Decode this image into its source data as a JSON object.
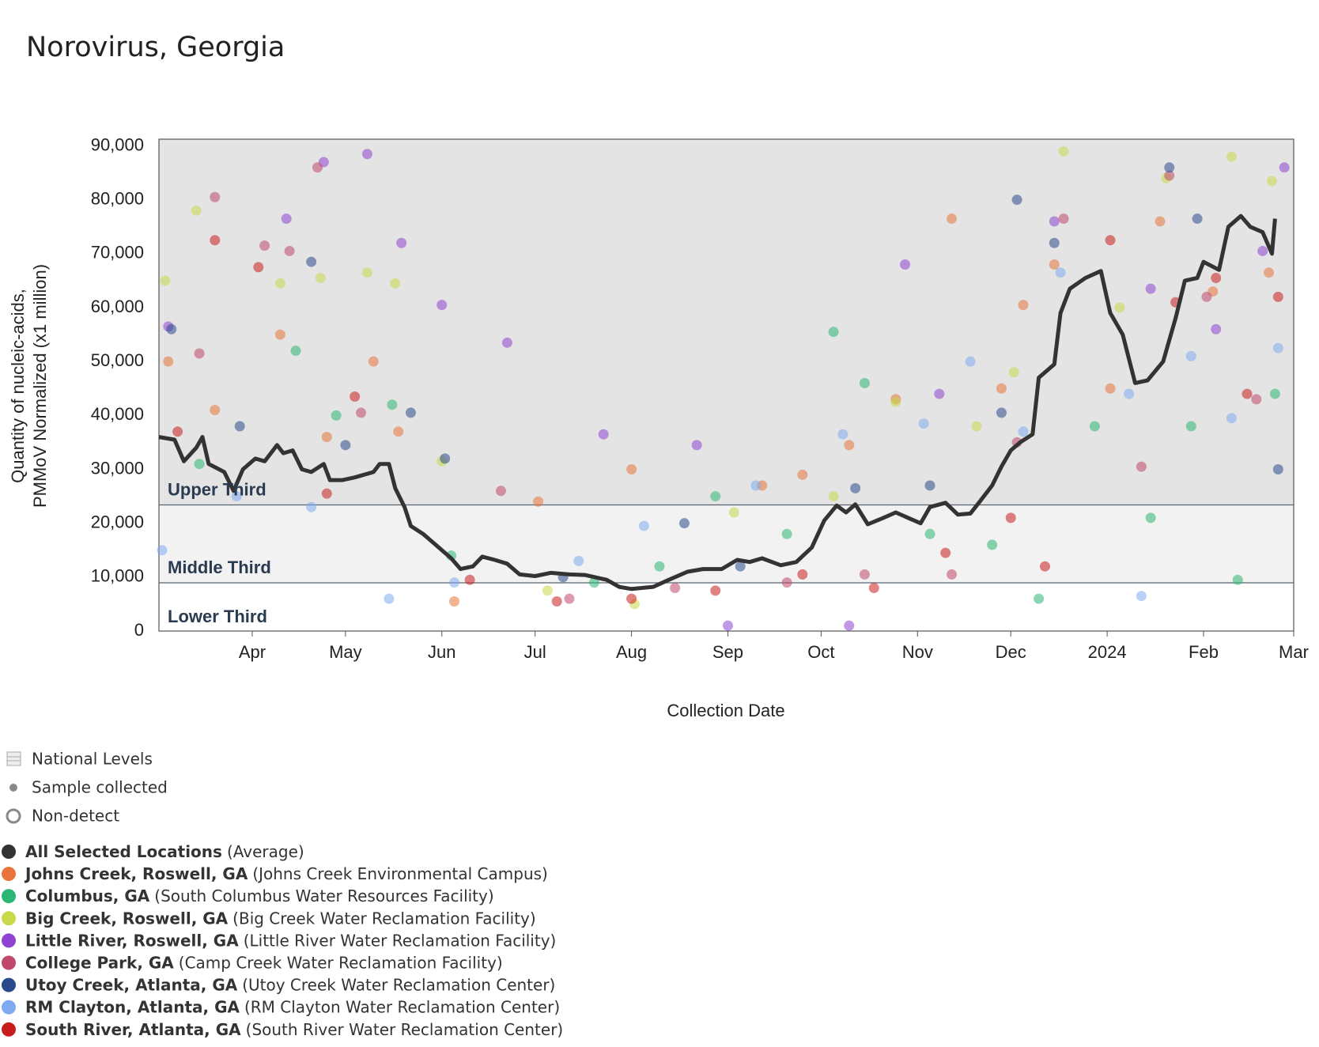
{
  "chart_data": {
    "type": "scatter",
    "title": "Norovirus, Georgia",
    "y_label": [
      "Quantity of nucleic-acids,",
      "PMMoV Normalized (x1 million)"
    ],
    "x_label": "Collection Date",
    "xlim": [
      "2023-03-02",
      "2024-03-01"
    ],
    "xticks": [
      {
        "value": "2023-04-01",
        "label": "Apr"
      },
      {
        "value": "2023-05-01",
        "label": "May"
      },
      {
        "value": "2023-06-01",
        "label": "Jun"
      },
      {
        "value": "2023-07-01",
        "label": "Jul"
      },
      {
        "value": "2023-08-01",
        "label": "Aug"
      },
      {
        "value": "2023-09-01",
        "label": "Sep"
      },
      {
        "value": "2023-10-01",
        "label": "Oct"
      },
      {
        "value": "2023-11-01",
        "label": "Nov"
      },
      {
        "value": "2023-12-01",
        "label": "Dec"
      },
      {
        "value": "2024-01-01",
        "label": "2024"
      },
      {
        "value": "2024-02-01",
        "label": "Feb"
      },
      {
        "value": "2024-03-01",
        "label": "Mar"
      }
    ],
    "ylim": [
      0,
      91250
    ],
    "yticks": [
      0,
      {
        "value": 10000,
        "label": "10,000"
      },
      {
        "value": 20000,
        "label": "20,000"
      },
      {
        "value": 30000,
        "label": "30,000"
      },
      {
        "value": 40000,
        "label": "40,000"
      },
      {
        "value": 50000,
        "label": "50,000"
      },
      {
        "value": 60000,
        "label": "60,000"
      },
      {
        "value": 70000,
        "label": "70,000"
      },
      {
        "value": 80000,
        "label": "80,000"
      },
      {
        "value": 90000,
        "label": "90,000"
      }
    ],
    "bands": [
      {
        "label": "Lower Third",
        "from": 0,
        "to": 8950,
        "color": "#ffffff"
      },
      {
        "label": "Middle Third",
        "from": 8950,
        "to": 23400,
        "color": "#f2f2f2"
      },
      {
        "label": "Upper Third",
        "from": 23400,
        "to": 91250,
        "color": "#e4e4e4"
      }
    ],
    "legend_items": [
      "National Levels",
      "Sample collected",
      "Non-detect"
    ],
    "series": [
      {
        "name": "All Selected Locations",
        "facility": "(Average)",
        "color": "#333333",
        "x": [
          "2023-03-02",
          "2023-03-07",
          "2023-03-10",
          "2023-03-14",
          "2023-03-16",
          "2023-03-18",
          "2023-03-23",
          "2023-03-26",
          "2023-03-29",
          "2023-04-02",
          "2023-04-05",
          "2023-04-07",
          "2023-04-09",
          "2023-04-11",
          "2023-04-14",
          "2023-04-17",
          "2023-04-20",
          "2023-04-24",
          "2023-04-26",
          "2023-04-30",
          "2023-05-04",
          "2023-05-10",
          "2023-05-12",
          "2023-05-15",
          "2023-05-17",
          "2023-05-20",
          "2023-05-22",
          "2023-05-26",
          "2023-05-30",
          "2023-06-04",
          "2023-06-07",
          "2023-06-11",
          "2023-06-14",
          "2023-06-18",
          "2023-06-22",
          "2023-06-26",
          "2023-07-01",
          "2023-07-06",
          "2023-07-12",
          "2023-07-17",
          "2023-07-24",
          "2023-07-28",
          "2023-08-01",
          "2023-08-08",
          "2023-08-13",
          "2023-08-19",
          "2023-08-24",
          "2023-08-30",
          "2023-09-04",
          "2023-09-08",
          "2023-09-12",
          "2023-09-18",
          "2023-09-23",
          "2023-09-28",
          "2023-10-02",
          "2023-10-06",
          "2023-10-09",
          "2023-10-12",
          "2023-10-16",
          "2023-10-21",
          "2023-10-25",
          "2023-10-29",
          "2023-11-02",
          "2023-11-05",
          "2023-11-10",
          "2023-11-14",
          "2023-11-18",
          "2023-11-21",
          "2023-11-25",
          "2023-11-28",
          "2023-12-01",
          "2023-12-04",
          "2023-12-08",
          "2023-12-10",
          "2023-12-15",
          "2023-12-17",
          "2023-12-20",
          "2023-12-25",
          "2023-12-30",
          "2024-01-02",
          "2024-01-06",
          "2024-01-10",
          "2024-01-14",
          "2024-01-19",
          "2024-01-23",
          "2024-01-26",
          "2024-01-30",
          "2024-02-01",
          "2024-02-06",
          "2024-02-09",
          "2024-02-13",
          "2024-02-16",
          "2024-02-20",
          "2024-02-23",
          "2024-02-24"
        ],
        "values": [
          36000,
          35500,
          31500,
          34000,
          36000,
          31000,
          29500,
          26000,
          30000,
          32000,
          31500,
          33000,
          34500,
          33000,
          33500,
          30000,
          29500,
          31000,
          28000,
          28000,
          28500,
          29500,
          31000,
          31000,
          26500,
          23000,
          19500,
          18000,
          16000,
          13500,
          11500,
          12000,
          13800,
          13200,
          12500,
          10500,
          10200,
          10800,
          10500,
          10400,
          9500,
          8200,
          7800,
          8200,
          9500,
          11000,
          11500,
          11500,
          13200,
          12800,
          13500,
          12200,
          12800,
          15500,
          20500,
          23300,
          22000,
          23500,
          19800,
          21000,
          22000,
          21000,
          20000,
          23000,
          23800,
          21600,
          21800,
          24000,
          27000,
          30500,
          33500,
          35000,
          36500,
          47000,
          49500,
          59000,
          63500,
          65500,
          66800,
          59000,
          55000,
          46000,
          46500,
          50000,
          58000,
          65000,
          65500,
          68500,
          67000,
          75000,
          77000,
          75000,
          74000,
          70000,
          76500
        ]
      },
      {
        "name": "Johns Creek, Roswell, GA",
        "facility": "(Johns Creek Environmental Campus)",
        "color": "#e8743b",
        "x": [
          "2023-03-05",
          "2023-03-20",
          "2023-04-10",
          "2023-04-25",
          "2023-05-10",
          "2023-05-18",
          "2023-06-05",
          "2023-07-02",
          "2023-08-01",
          "2023-09-12",
          "2023-09-25",
          "2023-10-10",
          "2023-10-25",
          "2023-11-12",
          "2023-11-28",
          "2023-12-05",
          "2023-12-15",
          "2024-01-02",
          "2024-01-18",
          "2024-02-04",
          "2024-02-22"
        ],
        "values": [
          50000,
          41000,
          55000,
          36000,
          50000,
          37000,
          5500,
          24000,
          30000,
          27000,
          29000,
          34500,
          43000,
          76500,
          45000,
          60500,
          68000,
          45000,
          76000,
          63000,
          66500
        ]
      },
      {
        "name": "Columbus, GA",
        "facility": "(South Columbus Water Resources Facility)",
        "color": "#2bb673",
        "x": [
          "2023-03-15",
          "2023-04-15",
          "2023-04-28",
          "2023-05-16",
          "2023-06-04",
          "2023-07-20",
          "2023-08-10",
          "2023-08-28",
          "2023-09-20",
          "2023-10-05",
          "2023-10-15",
          "2023-11-05",
          "2023-11-25",
          "2023-12-10",
          "2023-12-28",
          "2024-01-15",
          "2024-01-28",
          "2024-02-12",
          "2024-02-24"
        ],
        "values": [
          31000,
          52000,
          40000,
          42000,
          14000,
          9000,
          12000,
          25000,
          18000,
          55500,
          46000,
          18000,
          16000,
          6000,
          38000,
          21000,
          38000,
          9500,
          44000
        ]
      },
      {
        "name": "Big Creek, Roswell, GA",
        "facility": "(Big Creek Water Reclamation Facility)",
        "color": "#c9d94a",
        "x": [
          "2023-03-04",
          "2023-03-14",
          "2023-04-10",
          "2023-04-23",
          "2023-05-08",
          "2023-05-17",
          "2023-06-01",
          "2023-07-05",
          "2023-08-02",
          "2023-09-03",
          "2023-10-05",
          "2023-10-25",
          "2023-11-20",
          "2023-12-02",
          "2023-12-18",
          "2024-01-05",
          "2024-01-20",
          "2024-02-10",
          "2024-02-23"
        ],
        "values": [
          65000,
          78000,
          64500,
          65500,
          66500,
          64500,
          31500,
          7500,
          5000,
          22000,
          25000,
          42500,
          38000,
          48000,
          89000,
          60000,
          84000,
          88000,
          83500
        ]
      },
      {
        "name": "Little River, Roswell, GA",
        "facility": "(Little River Water Reclamation Facility)",
        "color": "#8e44d0",
        "x": [
          "2023-03-05",
          "2023-04-12",
          "2023-04-24",
          "2023-05-08",
          "2023-05-19",
          "2023-06-01",
          "2023-06-22",
          "2023-07-23",
          "2023-08-22",
          "2023-09-01",
          "2023-10-10",
          "2023-10-28",
          "2023-11-08",
          "2023-12-15",
          "2024-01-15",
          "2024-02-05",
          "2024-02-20",
          "2024-02-27"
        ],
        "values": [
          56500,
          76500,
          87000,
          88500,
          72000,
          60500,
          53500,
          36500,
          34500,
          1000,
          1000,
          68000,
          44000,
          76000,
          63500,
          56000,
          70500,
          86000
        ]
      },
      {
        "name": "College Park, GA",
        "facility": "(Camp Creek Water Reclamation Facility)",
        "color": "#c0486a",
        "x": [
          "2023-03-15",
          "2023-03-20",
          "2023-04-05",
          "2023-04-13",
          "2023-04-22",
          "2023-05-06",
          "2023-06-20",
          "2023-07-12",
          "2023-08-15",
          "2023-09-20",
          "2023-10-15",
          "2023-11-12",
          "2023-12-03",
          "2023-12-18",
          "2024-01-12",
          "2024-01-21",
          "2024-02-02",
          "2024-02-18"
        ],
        "values": [
          51500,
          80500,
          71500,
          70500,
          86000,
          40500,
          26000,
          6000,
          8000,
          9000,
          10500,
          10500,
          35000,
          76500,
          30500,
          84500,
          62000,
          43000
        ]
      },
      {
        "name": "Utoy Creek, Atlanta, GA",
        "facility": "(Utoy Creek Water Reclamation Center)",
        "color": "#2a4a8c",
        "x": [
          "2023-03-06",
          "2023-03-28",
          "2023-04-20",
          "2023-05-01",
          "2023-05-22",
          "2023-06-02",
          "2023-07-10",
          "2023-08-18",
          "2023-09-05",
          "2023-10-12",
          "2023-11-05",
          "2023-11-28",
          "2023-12-03",
          "2023-12-15",
          "2024-01-21",
          "2024-01-30",
          "2024-02-25"
        ],
        "values": [
          56000,
          38000,
          68500,
          34500,
          40500,
          32000,
          10000,
          20000,
          12000,
          26500,
          27000,
          40500,
          80000,
          72000,
          86000,
          76500,
          30000
        ]
      },
      {
        "name": "RM Clayton, Atlanta, GA",
        "facility": "(RM Clayton Water Reclamation Center)",
        "color": "#7fa9f0",
        "x": [
          "2023-03-03",
          "2023-03-27",
          "2023-04-20",
          "2023-05-15",
          "2023-06-05",
          "2023-07-15",
          "2023-08-05",
          "2023-09-10",
          "2023-10-08",
          "2023-11-03",
          "2023-11-18",
          "2023-12-05",
          "2023-12-17",
          "2024-01-08",
          "2024-01-12",
          "2024-01-28",
          "2024-02-10",
          "2024-02-25"
        ],
        "values": [
          15000,
          25000,
          23000,
          6000,
          9000,
          13000,
          19500,
          27000,
          36500,
          38500,
          50000,
          37000,
          66500,
          44000,
          6500,
          51000,
          39500,
          52500
        ]
      },
      {
        "name": "South River, Atlanta, GA",
        "facility": "(South River Water Reclamation Center)",
        "color": "#c81d1d",
        "x": [
          "2023-03-08",
          "2023-03-20",
          "2023-04-03",
          "2023-04-25",
          "2023-05-04",
          "2023-06-10",
          "2023-07-08",
          "2023-08-01",
          "2023-08-28",
          "2023-09-25",
          "2023-10-18",
          "2023-11-10",
          "2023-12-01",
          "2023-12-12",
          "2024-01-02",
          "2024-01-23",
          "2024-02-05",
          "2024-02-15",
          "2024-02-25"
        ],
        "values": [
          37000,
          72500,
          67500,
          25500,
          43500,
          9500,
          5500,
          6000,
          7500,
          10500,
          8000,
          14500,
          21000,
          12000,
          72500,
          61000,
          65500,
          44000,
          62000
        ]
      }
    ]
  }
}
